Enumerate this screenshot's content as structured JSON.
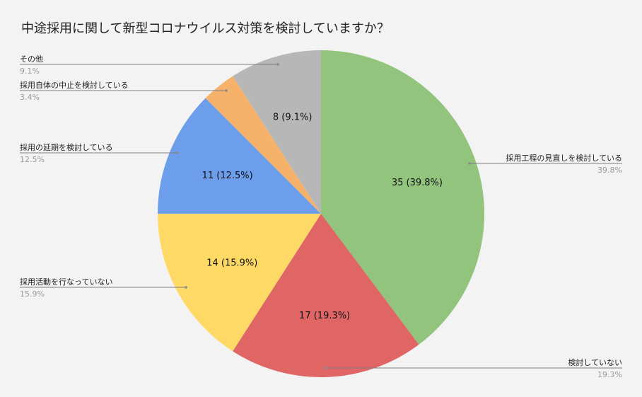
{
  "chart_data": {
    "type": "pie",
    "title": "中途採用に関して新型コロナウイルス対策を検討していますか？",
    "slices": [
      {
        "label": "採用工程の見直しを検討している",
        "value": 35,
        "percent_label": "39.8%",
        "inner_label": "35 (39.8%)",
        "color": "#93c47d"
      },
      {
        "label": "検討していない",
        "value": 17,
        "percent_label": "19.3%",
        "inner_label": "17 (19.3%)",
        "color": "#e06666"
      },
      {
        "label": "採用活動を行なっていない",
        "value": 14,
        "percent_label": "15.9%",
        "inner_label": "14 (15.9%)",
        "color": "#ffd966"
      },
      {
        "label": "採用の延期を検討している",
        "value": 11,
        "percent_label": "12.5%",
        "inner_label": "11 (12.5%)",
        "color": "#6d9eeb"
      },
      {
        "label": "採用自体の中止を検討している",
        "value": 3,
        "percent_label": "3.4%",
        "inner_label": "",
        "color": "#f6b26b"
      },
      {
        "label": "その他",
        "value": 8,
        "percent_label": "9.1%",
        "inner_label": "8 (9.1%)",
        "color": "#b7b7b7"
      }
    ]
  }
}
